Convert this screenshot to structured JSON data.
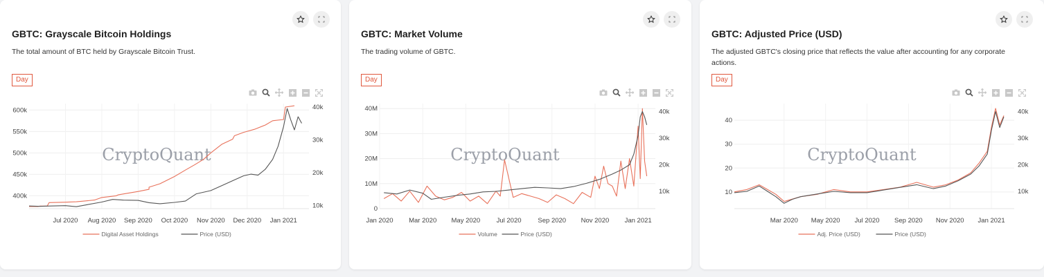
{
  "colors": {
    "accent": "#e0573d",
    "price": "#555555",
    "grid": "#eeeeee"
  },
  "icons": {
    "favorite": "star-icon",
    "expand": "expand-icon",
    "camera": "camera-icon",
    "zoom": "zoom-icon",
    "pan": "pan-icon",
    "zoom_in": "zoom-in-icon",
    "zoom_out": "zoom-out-icon",
    "autoscale": "autoscale-icon"
  },
  "cards": [
    {
      "title": "GBTC: Grayscale Bitcoin Holdings",
      "description": "The total amount of BTC held by Grayscale Bitcoin Trust.",
      "interval": "Day",
      "watermark": "CryptoQuant",
      "legend": [
        "Digital Asset Holdings",
        "Price (USD)"
      ]
    },
    {
      "title": "GBTC: Market Volume",
      "description": "The trading volume of GBTC.",
      "interval": "Day",
      "watermark": "CryptoQuant",
      "legend": [
        "Volume",
        "Price (USD)"
      ]
    },
    {
      "title": "GBTC: Adjusted Price (USD)",
      "description": "The adjusted GBTC's closing price that reflects the value after accounting for any corporate actions.",
      "interval": "Day",
      "watermark": "CryptoQuant",
      "legend": [
        "Adj. Price (USD)",
        "Price (USD)"
      ]
    }
  ],
  "chart_data": [
    {
      "type": "line",
      "title": "GBTC: Grayscale Bitcoin Holdings",
      "x_tick_labels": [
        "Jul 2020",
        "Aug 2020",
        "Sep 2020",
        "Oct 2020",
        "Nov 2020",
        "Dec 2020",
        "Jan 2021"
      ],
      "x_range": [
        0,
        7.7
      ],
      "y_left": {
        "ticks": [
          "400k",
          "450k",
          "500k",
          "550k",
          "600k"
        ],
        "tick_values": [
          400000,
          450000,
          500000,
          550000,
          600000
        ],
        "range": [
          370000,
          615000
        ]
      },
      "y_right": {
        "ticks": [
          "10k",
          "20k",
          "30k",
          "40k"
        ],
        "tick_values": [
          10000,
          20000,
          30000,
          40000
        ],
        "range": [
          9000,
          41000
        ]
      },
      "grid": true,
      "legend_position": "bottom",
      "series": [
        {
          "name": "Digital Asset Holdings",
          "axis": "left",
          "color": "#e8715a",
          "x": [
            0,
            0.25,
            0.3,
            0.5,
            0.55,
            1.0,
            1.3,
            1.8,
            2.0,
            2.4,
            2.45,
            3.0,
            3.3,
            3.3,
            3.6,
            4.0,
            4.3,
            4.55,
            4.8,
            5.0,
            5.3,
            5.6,
            5.65,
            5.9,
            6.2,
            6.5,
            6.7,
            7.0,
            7.05,
            7.3
          ],
          "y": [
            375000,
            375000,
            376000,
            376000,
            384000,
            385000,
            386000,
            390000,
            396000,
            400000,
            402000,
            410000,
            415000,
            420000,
            428000,
            445000,
            460000,
            472000,
            485000,
            500000,
            520000,
            532000,
            540000,
            548000,
            555000,
            565000,
            575000,
            578000,
            607000,
            610000
          ]
        },
        {
          "name": "Price (USD)",
          "axis": "right",
          "color": "#555555",
          "x": [
            0,
            0.3,
            0.6,
            1.0,
            1.3,
            1.6,
            2.0,
            2.3,
            2.6,
            3.0,
            3.3,
            3.6,
            4.0,
            4.3,
            4.6,
            5.0,
            5.3,
            5.6,
            5.9,
            6.1,
            6.3,
            6.5,
            6.7,
            6.85,
            7.0,
            7.1,
            7.2,
            7.3,
            7.4,
            7.5
          ],
          "y": [
            9800,
            9700,
            9800,
            9900,
            9600,
            10200,
            11000,
            11800,
            11600,
            11500,
            10800,
            10500,
            10900,
            11300,
            13500,
            14500,
            16000,
            17500,
            19000,
            19500,
            19200,
            21000,
            24000,
            28000,
            34000,
            39500,
            36000,
            33000,
            37000,
            35000
          ]
        }
      ]
    },
    {
      "type": "line",
      "title": "GBTC: Market Volume",
      "x_tick_labels": [
        "Jan 2020",
        "Mar 2020",
        "May 2020",
        "Jul 2020",
        "Sep 2020",
        "Nov 2020",
        "Jan 2021"
      ],
      "x_range": [
        0,
        6.4
      ],
      "y_left": {
        "ticks": [
          "0",
          "10M",
          "20M",
          "30M",
          "40M"
        ],
        "tick_values": [
          0,
          10000000,
          20000000,
          30000000,
          40000000
        ],
        "range": [
          0,
          42000000
        ]
      },
      "y_right": {
        "ticks": [
          "10k",
          "20k",
          "30k",
          "40k"
        ],
        "tick_values": [
          10000,
          20000,
          30000,
          40000
        ],
        "range": [
          3500,
          43000
        ]
      },
      "grid": true,
      "legend_position": "bottom",
      "series": [
        {
          "name": "Volume",
          "axis": "left",
          "color": "#e8715a",
          "x": [
            0.1,
            0.3,
            0.5,
            0.7,
            0.9,
            1.1,
            1.3,
            1.5,
            1.7,
            1.9,
            2.1,
            2.3,
            2.5,
            2.7,
            2.8,
            2.9,
            3.1,
            3.3,
            3.5,
            3.7,
            3.9,
            4.1,
            4.3,
            4.5,
            4.7,
            4.9,
            5.0,
            5.1,
            5.2,
            5.3,
            5.4,
            5.5,
            5.6,
            5.7,
            5.8,
            5.9,
            6.0,
            6.05,
            6.1,
            6.15,
            6.2
          ],
          "y": [
            4000000,
            6000000,
            3000000,
            7000000,
            2500000,
            9000000,
            5000000,
            3500000,
            4500000,
            6500000,
            3000000,
            5000000,
            2000000,
            7000000,
            5000000,
            19500000,
            4500000,
            6000000,
            5000000,
            4000000,
            2500000,
            5500000,
            4000000,
            2000000,
            6500000,
            4500000,
            13000000,
            8000000,
            17000000,
            10000000,
            9000000,
            5000000,
            19000000,
            8000000,
            20000000,
            9000000,
            33000000,
            12000000,
            40000000,
            19000000,
            13000000
          ]
        },
        {
          "name": "Price (USD)",
          "axis": "right",
          "color": "#555555",
          "x": [
            0.1,
            0.4,
            0.7,
            1.0,
            1.2,
            1.5,
            1.8,
            2.1,
            2.4,
            2.7,
            3.0,
            3.3,
            3.6,
            3.9,
            4.2,
            4.5,
            4.8,
            5.1,
            5.4,
            5.6,
            5.8,
            5.9,
            6.0,
            6.05,
            6.1,
            6.15,
            6.2
          ],
          "y": [
            9500,
            9000,
            10500,
            9300,
            7000,
            7800,
            8500,
            9000,
            9800,
            10000,
            10500,
            11000,
            11500,
            11300,
            11000,
            11800,
            13000,
            14500,
            16500,
            18000,
            20000,
            24000,
            31000,
            38000,
            40000,
            38000,
            35000
          ]
        }
      ]
    },
    {
      "type": "line",
      "title": "GBTC: Adjusted Price (USD)",
      "x_tick_labels": [
        "Mar 2020",
        "May 2020",
        "Jul 2020",
        "Sep 2020",
        "Nov 2020",
        "Jan 2021"
      ],
      "x_range": [
        -1.2,
        5.55
      ],
      "y_left": {
        "ticks": [
          "10",
          "20",
          "30",
          "40"
        ],
        "tick_values": [
          10,
          20,
          30,
          40
        ],
        "range": [
          3,
          47
        ]
      },
      "y_right": {
        "ticks": [
          "10k",
          "20k",
          "30k",
          "40k"
        ],
        "tick_values": [
          10000,
          20000,
          30000,
          40000
        ],
        "range": [
          3500,
          43000
        ]
      },
      "grid": true,
      "legend_position": "bottom",
      "series": [
        {
          "name": "Adj. Price (USD)",
          "axis": "left",
          "color": "#e8715a",
          "x": [
            -1.2,
            -0.9,
            -0.6,
            -0.4,
            -0.2,
            0,
            0.2,
            0.4,
            0.8,
            1.2,
            1.6,
            2.0,
            2.4,
            2.8,
            3.2,
            3.6,
            3.9,
            4.2,
            4.5,
            4.7,
            4.9,
            5.0,
            5.1,
            5.2,
            5.3
          ],
          "y": [
            10,
            11,
            13,
            11,
            9,
            6,
            7,
            8,
            9,
            11,
            10,
            10,
            11,
            12,
            14,
            12,
            13,
            15,
            18,
            22,
            27,
            37,
            45,
            38,
            42
          ]
        },
        {
          "name": "Price (USD)",
          "axis": "right",
          "color": "#555555",
          "x": [
            -1.2,
            -0.9,
            -0.6,
            -0.4,
            -0.2,
            0,
            0.2,
            0.4,
            0.8,
            1.2,
            1.6,
            2.0,
            2.4,
            2.8,
            3.2,
            3.6,
            3.9,
            4.2,
            4.5,
            4.7,
            4.9,
            5.0,
            5.1,
            5.2,
            5.3
          ],
          "y": [
            9500,
            10000,
            12000,
            10000,
            8000,
            5500,
            7000,
            8000,
            9000,
            10000,
            9500,
            9500,
            10500,
            11500,
            12500,
            11000,
            12000,
            14000,
            16500,
            19500,
            24000,
            33000,
            40000,
            34000,
            38000
          ]
        }
      ]
    }
  ]
}
